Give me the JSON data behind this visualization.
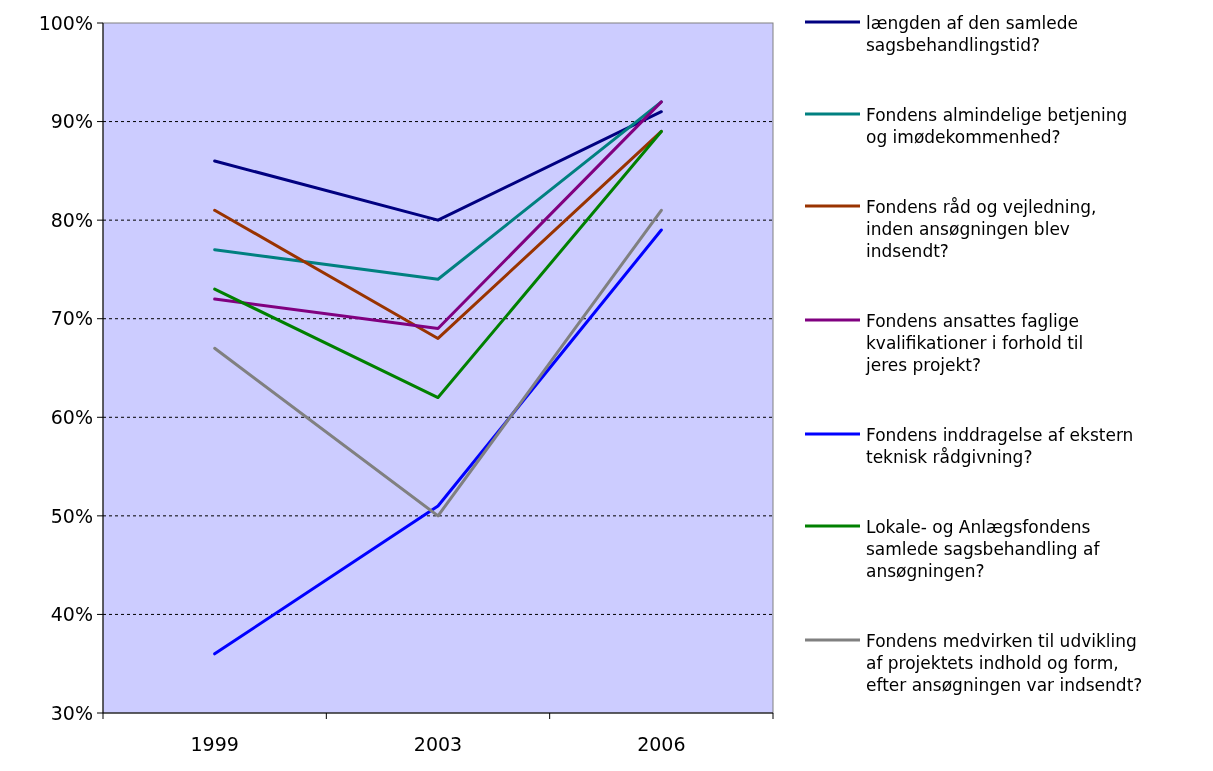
{
  "chart_data": {
    "type": "line",
    "categories": [
      "1999",
      "2003",
      "2006"
    ],
    "ylim": [
      0.3,
      1.0
    ],
    "yticks": [
      {
        "value": 0.3,
        "label": "30%"
      },
      {
        "value": 0.4,
        "label": "40%"
      },
      {
        "value": 0.5,
        "label": "50%"
      },
      {
        "value": 0.6,
        "label": "60%"
      },
      {
        "value": 0.7,
        "label": "70%"
      },
      {
        "value": 0.8,
        "label": "80%"
      },
      {
        "value": 0.9,
        "label": "90%"
      },
      {
        "value": 1.0,
        "label": "100%"
      }
    ],
    "grid": "y",
    "legend": "right",
    "marker": "none",
    "line_style": "solid",
    "series": [
      {
        "name": "længden af den samlede sagsbehandlingstid?",
        "color": "#000080",
        "values": [
          0.86,
          0.8,
          0.91
        ]
      },
      {
        "name": "Fondens almindelige betjening og imødekommenhed?",
        "color": "#008080",
        "values": [
          0.77,
          0.74,
          0.92
        ]
      },
      {
        "name": "Fondens råd og vejledning, inden ansøgningen blev indsendt?",
        "color": "#993300",
        "values": [
          0.81,
          0.68,
          0.89
        ]
      },
      {
        "name": "Fondens ansattes faglige kvalifikationer i forhold til jeres projekt?",
        "color": "#800080",
        "values": [
          0.72,
          0.69,
          0.92
        ]
      },
      {
        "name": "Fondens inddragelse af ekstern teknisk rådgivning?",
        "color": "#0000ff",
        "values": [
          0.36,
          0.51,
          0.79
        ]
      },
      {
        "name": "Lokale- og Anlægsfondens samlede sagsbehandling af ansøgningen?",
        "color": "#008000",
        "values": [
          0.73,
          0.62,
          0.89
        ]
      },
      {
        "name": "Fondens medvirken til udvikling af projektets indhold og form, efter ansøgningen var indsendt?",
        "color": "#808080",
        "values": [
          0.67,
          0.5,
          0.81
        ]
      }
    ]
  }
}
